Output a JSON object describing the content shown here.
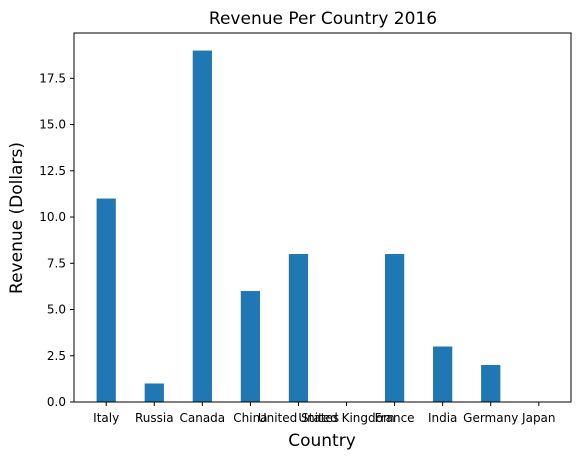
{
  "chart_data": {
    "type": "bar",
    "title": "Revenue Per Country 2016",
    "xlabel": "Country",
    "ylabel": "Revenue (Dollars)",
    "categories": [
      "Italy",
      "Russia",
      "Canada",
      "China",
      "United States",
      "United Kingdom",
      "France",
      "India",
      "Germany",
      "Japan"
    ],
    "values": [
      11,
      1,
      19,
      6,
      8,
      0,
      8,
      3,
      2,
      0
    ],
    "ylim": [
      0,
      19.95
    ],
    "yticks": [
      "0.0",
      "2.5",
      "5.0",
      "7.5",
      "10.0",
      "12.5",
      "15.0",
      "17.5"
    ],
    "grid": false,
    "bar_color": "#1f77b4"
  }
}
